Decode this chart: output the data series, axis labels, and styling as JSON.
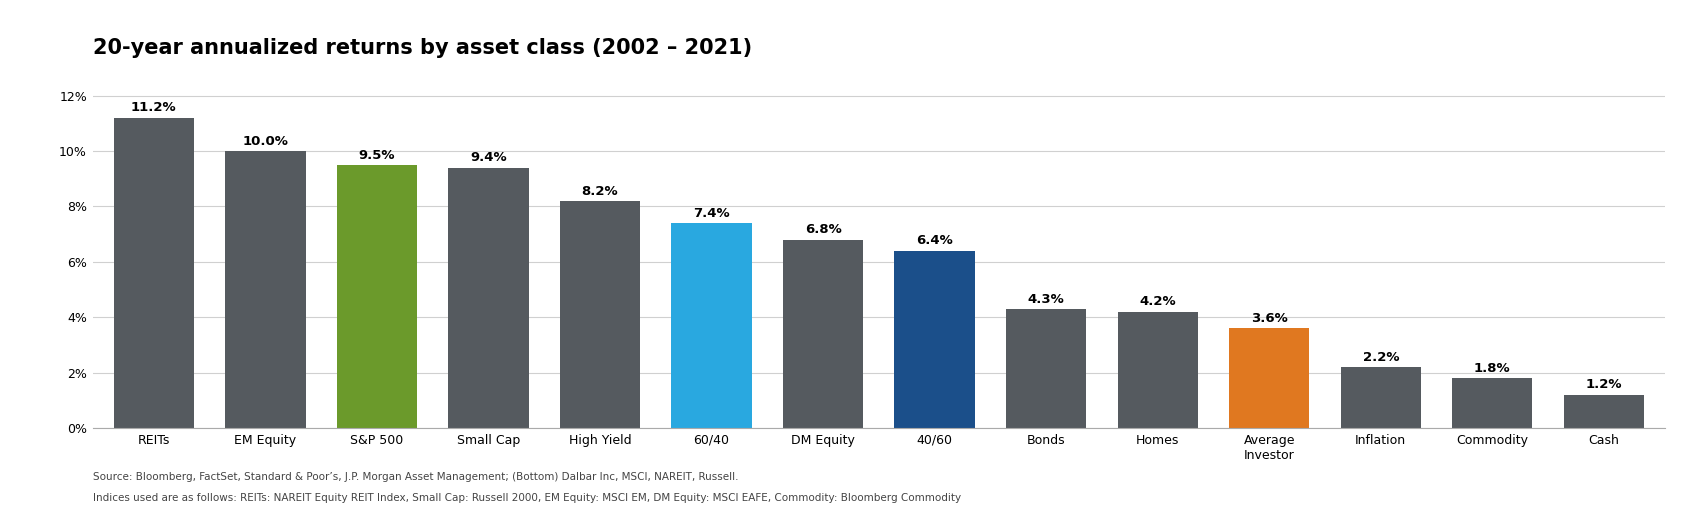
{
  "title": "20-year annualized returns by asset class (2002 – 2021)",
  "categories": [
    "REITs",
    "EM Equity",
    "S&P 500",
    "Small Cap",
    "High Yield",
    "60/40",
    "DM Equity",
    "40/60",
    "Bonds",
    "Homes",
    "Average\nInvestor",
    "Inflation",
    "Commodity",
    "Cash"
  ],
  "values": [
    11.2,
    10.0,
    9.5,
    9.4,
    8.2,
    7.4,
    6.8,
    6.4,
    4.3,
    4.2,
    3.6,
    2.2,
    1.8,
    1.2
  ],
  "labels": [
    "11.2%",
    "10.0%",
    "9.5%",
    "9.4%",
    "8.2%",
    "7.4%",
    "6.8%",
    "6.4%",
    "4.3%",
    "4.2%",
    "3.6%",
    "2.2%",
    "1.8%",
    "1.2%"
  ],
  "bar_colors": [
    "#555a5f",
    "#555a5f",
    "#6b9a2b",
    "#555a5f",
    "#555a5f",
    "#29a8e0",
    "#555a5f",
    "#1b4f8a",
    "#555a5f",
    "#555a5f",
    "#e07820",
    "#555a5f",
    "#555a5f",
    "#555a5f"
  ],
  "ylim": [
    0,
    13.0
  ],
  "yticks": [
    0,
    2,
    4,
    6,
    8,
    10,
    12
  ],
  "ytick_labels": [
    "0%",
    "2%",
    "4%",
    "6%",
    "8%",
    "10%",
    "12%"
  ],
  "background_color": "#ffffff",
  "source_text": "Source: Bloomberg, FactSet, Standard & Poor’s, J.P. Morgan Asset Management; (Bottom) Dalbar Inc, MSCI, NAREIT, Russell.",
  "source_text2": "Indices used are as follows: REITs: NAREIT Equity REIT Index, Small Cap: Russell 2000, EM Equity: MSCI EM, DM Equity: MSCI EAFE, Commodity: Bloomberg Commodity",
  "title_fontsize": 15,
  "label_fontsize": 9.5,
  "tick_fontsize": 9,
  "source_fontsize": 7.5,
  "bar_width": 0.72
}
